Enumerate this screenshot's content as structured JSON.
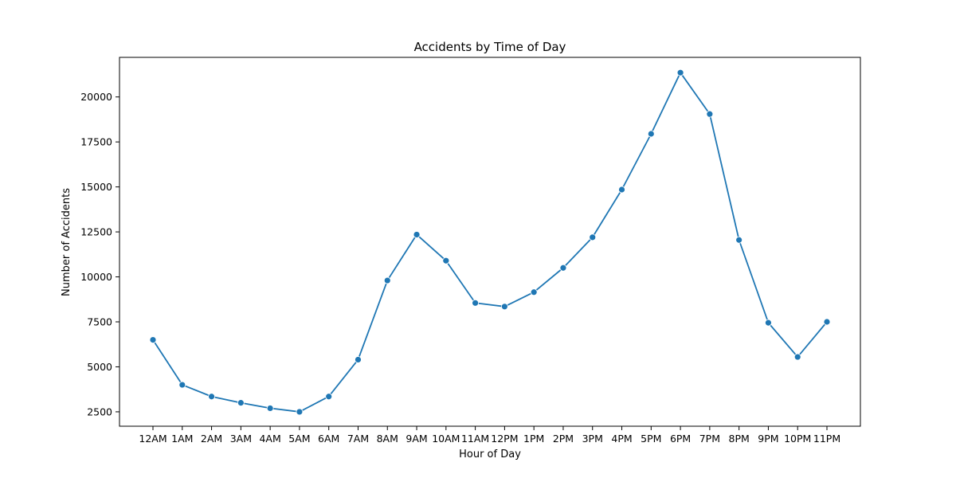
{
  "chart_data": {
    "type": "line",
    "title": "Accidents by Time of Day",
    "xlabel": "Hour of Day",
    "ylabel": "Number of Accidents",
    "categories": [
      "12AM",
      "1AM",
      "2AM",
      "3AM",
      "4AM",
      "5AM",
      "6AM",
      "7AM",
      "8AM",
      "9AM",
      "10AM",
      "11AM",
      "12PM",
      "1PM",
      "2PM",
      "3PM",
      "4PM",
      "5PM",
      "6PM",
      "7PM",
      "8PM",
      "9PM",
      "10PM",
      "11PM"
    ],
    "series": [
      {
        "values": [
          6500,
          4000,
          3350,
          3000,
          2700,
          2500,
          3350,
          5400,
          9800,
          12350,
          10900,
          8550,
          8350,
          9150,
          10500,
          12200,
          14850,
          17950,
          21350,
          19050,
          12050,
          7450,
          5550,
          7500
        ],
        "color": "#1f77b4",
        "marker": "circle"
      }
    ],
    "yticks": [
      2500,
      5000,
      7500,
      10000,
      12500,
      15000,
      17500,
      20000
    ],
    "ylim": [
      1700,
      22200
    ],
    "grid": false,
    "legend": "none"
  }
}
